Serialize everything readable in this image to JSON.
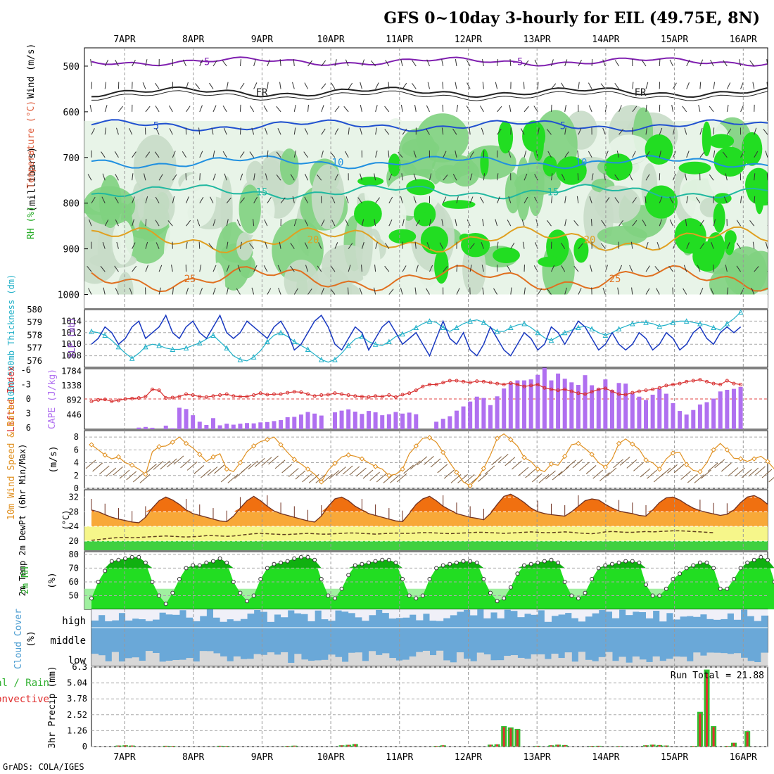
{
  "title": "GFS 0~10day 3-hourly for EIL (49.75E, 8N)",
  "footer": "GrADS: COLA/IGES",
  "dates": [
    "7APR",
    "8APR",
    "9APR",
    "10APR",
    "11APR",
    "12APR",
    "13APR",
    "14APR",
    "15APR",
    "16APR"
  ],
  "colors": {
    "rh_light": "#e8f4e8",
    "rh_mid": "#c8dcc8",
    "rh_green": "#7fd27f",
    "rh_bright": "#22dd22",
    "temp_purple": "#8020b0",
    "temp_blue": "#2050d0",
    "temp_lightblue": "#2090e0",
    "temp_teal": "#20b8a0",
    "temp_orange": "#e0a020",
    "temp_darkorange": "#e07020",
    "thick_line": "#20b0c8",
    "slp_line": "#1838c0",
    "cape_bar": "#b070f0",
    "li_line": "#d83030",
    "wind_line": "#e09020",
    "barb": "#806040",
    "temp_fill_hot": "#f07010",
    "temp_fill": "#f8a838",
    "yellow": "#f6f68a",
    "green": "#40d040",
    "rh2m_dark": "#10b010",
    "rh2m_mid": "#22dd22",
    "rh2m_light": "#a0f0a0",
    "cloud_blue": "#6aa8d8",
    "cloud_grey": "#d8d8d8",
    "cloud_white": "#f0f0f8",
    "precip_green": "#30c030",
    "precip_red": "#e03030"
  },
  "chart_data": [
    {
      "panel": "upper-air",
      "type": "contour",
      "ylabel": "(millibars)",
      "left_labels": [
        "RH (%)",
        "Temperature (°C)",
        "Wind (m/s)"
      ],
      "y_ticks": [
        500,
        600,
        700,
        800,
        900,
        1000
      ],
      "ylim": [
        460,
        1030
      ],
      "isotherm_labels": [
        "-5",
        "FR",
        "5",
        "10",
        "15",
        "20",
        "25",
        "-5",
        "FR",
        "5",
        "10",
        "15",
        "20",
        "25"
      ],
      "isotherm_levels": [
        {
          "label": "-5",
          "pressure_mb": 490
        },
        {
          "label": "FR",
          "pressure_mb": 557
        },
        {
          "label": "5",
          "pressure_mb": 630
        },
        {
          "label": "10",
          "pressure_mb": 710
        },
        {
          "label": "15",
          "pressure_mb": 775
        },
        {
          "label": "20",
          "pressure_mb": 880
        },
        {
          "label": "25",
          "pressure_mb": 965
        }
      ]
    },
    {
      "panel": "thickness-slp",
      "type": "line",
      "left_label": "1000-500mb Thickness (dm)",
      "right_label": "SLP (mb)",
      "y_ticks_left": [
        576,
        577,
        578,
        579,
        580
      ],
      "y_ticks_right": [
        1008,
        1010,
        1012,
        1014
      ],
      "thickness_dm": [
        578.3,
        578.2,
        578.0,
        577.6,
        577.1,
        576.6,
        576.2,
        576.6,
        577.1,
        577.3,
        577.2,
        577.0,
        576.9,
        576.9,
        577.0,
        577.2,
        577.4,
        577.7,
        578.0,
        577.5,
        577.0,
        576.4,
        576.1,
        576.0,
        576.3,
        576.8,
        577.5,
        578.0,
        578.2,
        577.9,
        577.5,
        577.2,
        576.9,
        576.5,
        576.1,
        575.9,
        576.1,
        576.6,
        577.2,
        577.7,
        577.9,
        577.5,
        577.3,
        577.2,
        577.5,
        577.9,
        578.1,
        578.3,
        578.6,
        578.9,
        579.1,
        579.0,
        578.6,
        578.3,
        578.6,
        578.9,
        579.1,
        579.2,
        579.0,
        578.6,
        578.3,
        578.3,
        578.6,
        578.8,
        578.9,
        578.6,
        578.2,
        577.8,
        577.6,
        577.9,
        578.2,
        578.4,
        578.6,
        578.7,
        578.5,
        578.2,
        578.0,
        578.2,
        578.5,
        578.7,
        578.9,
        579.0,
        579.0,
        578.9,
        578.7,
        578.8,
        579.0,
        579.1,
        579.1,
        579.0,
        578.9,
        578.8,
        578.6,
        578.4,
        578.9,
        579.3,
        579.8
      ],
      "slp_mb": [
        1010,
        1011,
        1013,
        1012,
        1010,
        1011,
        1013,
        1014,
        1011,
        1012,
        1013,
        1015,
        1012,
        1011,
        1013,
        1014,
        1012,
        1011,
        1013,
        1015,
        1012,
        1011,
        1012,
        1014,
        1013,
        1012,
        1011,
        1013,
        1014,
        1012,
        1009,
        1010,
        1012,
        1014,
        1015,
        1013,
        1010,
        1009,
        1011,
        1013,
        1012,
        1009,
        1011,
        1013,
        1014,
        1012,
        1010,
        1011,
        1012,
        1010,
        1008,
        1011,
        1014,
        1011,
        1010,
        1012,
        1009,
        1008,
        1010,
        1013,
        1011,
        1009,
        1008,
        1010,
        1012,
        1011,
        1009,
        1010,
        1013,
        1012,
        1010,
        1012,
        1014,
        1013,
        1011,
        1009,
        1010,
        1012,
        1010,
        1009,
        1010,
        1012,
        1011,
        1009,
        1010,
        1012,
        1011,
        1009,
        1010,
        1012,
        1013,
        1011,
        1010,
        1012,
        1013,
        1012,
        1013
      ]
    },
    {
      "panel": "cape-li",
      "type": "bar",
      "left_label": "Lifted Index",
      "right_label": "CAPE (J/kg)",
      "li_ticks": [
        -6,
        -3,
        0,
        3,
        6
      ],
      "cape_ticks": [
        446,
        892,
        1338,
        1784
      ],
      "cape_values": [
        0,
        0,
        0,
        0,
        0,
        0,
        0,
        50,
        70,
        45,
        0,
        110,
        30,
        660,
        620,
        430,
        230,
        130,
        340,
        120,
        170,
        140,
        170,
        190,
        180,
        210,
        220,
        250,
        280,
        370,
        380,
        450,
        530,
        480,
        420,
        0,
        520,
        570,
        610,
        540,
        470,
        560,
        520,
        430,
        460,
        530,
        480,
        510,
        460,
        0,
        0,
        230,
        320,
        400,
        570,
        700,
        850,
        1000,
        960,
        740,
        1010,
        1250,
        1440,
        1500,
        1500,
        1530,
        1670,
        1890,
        1500,
        1710,
        1550,
        1440,
        1360,
        1660,
        1350,
        1250,
        1530,
        1200,
        1420,
        1400,
        1100,
        1000,
        900,
        1060,
        1240,
        1090,
        800,
        560,
        450,
        590,
        760,
        830,
        940,
        1160,
        1210,
        1240,
        1300
      ],
      "li_values": [
        0.5,
        0.2,
        0.1,
        0.5,
        0.3,
        0,
        -0.1,
        -0.2,
        -0.5,
        -2.0,
        -1.8,
        -0.2,
        -0.3,
        -0.5,
        -1.0,
        -0.8,
        -0.5,
        -0.4,
        -0.6,
        -0.8,
        -1.0,
        -0.6,
        -0.5,
        -0.5,
        -0.8,
        -1.2,
        -0.9,
        -1.0,
        -1.0,
        -1.3,
        -1.5,
        -1.4,
        -1.0,
        -0.6,
        -0.8,
        -0.9,
        -1.2,
        -1.0,
        -0.8,
        -0.6,
        -0.5,
        -0.4,
        -0.6,
        -0.5,
        -0.8,
        -0.4,
        -0.9,
        -1.2,
        -1.8,
        -2.6,
        -3.0,
        -3.0,
        -3.4,
        -3.8,
        -3.8,
        -3.6,
        -3.4,
        -3.7,
        -3.6,
        -3.4,
        -3.2,
        -3.0,
        -3.3,
        -3.0,
        -2.6,
        -2.8,
        -3.0,
        -2.3,
        -2.0,
        -1.8,
        -2.0,
        -1.6,
        -1.2,
        -1.0,
        -1.5,
        -2.0,
        -2.2,
        -1.6,
        -1.0,
        -0.9,
        -1.3,
        -1.6,
        -1.8,
        -2.0,
        -2.3,
        -2.8,
        -3.0,
        -3.2,
        -3.6,
        -3.8,
        -4.0,
        -3.6,
        -3.2,
        -3.0,
        -3.8,
        -3.2,
        -3.0
      ]
    },
    {
      "panel": "wind10m",
      "type": "line",
      "left_label": "10m Wind Speed & Barbs",
      "unit": "(m/s)",
      "y_ticks": [
        0,
        2,
        4,
        6,
        8
      ],
      "speed_ms": [
        6.8,
        6.0,
        5.2,
        4.6,
        4.9,
        4.0,
        3.6,
        3.0,
        2.2,
        5.7,
        6.5,
        6.6,
        7.2,
        8.0,
        7.0,
        6.3,
        5.3,
        4.2,
        4.9,
        5.4,
        3.0,
        2.6,
        4.0,
        5.7,
        6.6,
        7.3,
        7.6,
        8.0,
        6.8,
        5.6,
        4.5,
        3.8,
        3.0,
        2.2,
        1.0,
        2.8,
        3.9,
        4.9,
        5.2,
        5.0,
        4.6,
        4.0,
        3.4,
        3.0,
        2.0,
        2.2,
        3.0,
        5.4,
        6.6,
        7.8,
        7.9,
        7.2,
        5.6,
        4.0,
        2.5,
        1.0,
        0.4,
        1.5,
        3.1,
        5.2,
        7.8,
        8.5,
        7.6,
        6.6,
        4.8,
        4.2,
        3.0,
        2.6,
        3.8,
        3.6,
        5.0,
        6.8,
        7.0,
        6.2,
        5.3,
        4.0,
        3.3,
        4.6,
        7.0,
        7.7,
        6.9,
        6.1,
        4.4,
        4.0,
        3.0,
        4.6,
        5.5,
        5.6,
        3.7,
        2.8,
        2.6,
        4.0,
        6.0,
        7.0,
        6.0,
        4.7,
        4.6,
        4.2,
        4.6,
        5.0,
        4.2,
        3.0,
        2.8,
        4.5
      ]
    },
    {
      "panel": "temp2m",
      "type": "area",
      "left_label": "2m Temp 2m DewPt (6hr Min/Max)",
      "unit": "(°C)",
      "y_ticks": [
        20,
        24,
        28,
        32
      ],
      "temp_c": [
        28.5,
        28.0,
        27.2,
        26.5,
        26.0,
        25.6,
        25.2,
        25.0,
        26.5,
        29.0,
        31.0,
        32.0,
        31.2,
        30.0,
        28.5,
        27.5,
        27.0,
        26.5,
        26.0,
        25.5,
        25.3,
        26.8,
        29.0,
        31.0,
        32.2,
        31.0,
        29.5,
        28.2,
        27.5,
        27.0,
        26.5,
        26.0,
        25.5,
        25.2,
        26.8,
        29.5,
        31.5,
        32.0,
        31.0,
        29.5,
        28.5,
        27.5,
        27.0,
        26.5,
        26.0,
        25.5,
        25.3,
        27.5,
        30.0,
        31.5,
        32.2,
        31.0,
        29.5,
        28.5,
        27.5,
        27.0,
        26.5,
        26.2,
        25.8,
        27.5,
        30.0,
        32.2,
        32.8,
        31.8,
        30.5,
        29.0,
        28.0,
        27.5,
        27.2,
        27.0,
        26.8,
        28.0,
        29.5,
        31.0,
        31.5,
        31.2,
        30.0,
        29.0,
        28.2,
        27.8,
        27.5,
        27.0,
        26.8,
        28.5,
        30.5,
        31.8,
        32.0,
        31.2,
        30.0,
        29.0,
        28.3,
        27.8,
        27.4,
        27.0,
        27.3,
        28.5,
        30.5,
        32.0,
        32.4,
        31.5,
        30.0
      ],
      "dewpoint_c": [
        20.2,
        20.4,
        20.6,
        20.8,
        21.0,
        21.0,
        20.9,
        21.0,
        21.1,
        21.2,
        21.3,
        21.4,
        21.3,
        21.2,
        21.1,
        21.2,
        21.3,
        21.5,
        21.5,
        21.4,
        21.3,
        21.4,
        21.6,
        21.8,
        22.0,
        22.1,
        22.0,
        21.9,
        21.8,
        21.8,
        21.9,
        22.0,
        22.1,
        22.0,
        21.9,
        21.9,
        22.0,
        22.1,
        22.2,
        22.2,
        22.1,
        22.0,
        21.9,
        22.0,
        22.1,
        22.2,
        22.1,
        22.1,
        22.2,
        22.3,
        22.3,
        22.2,
        22.1,
        22.0,
        22.1,
        22.2,
        22.3,
        22.4,
        22.4,
        22.3,
        22.2,
        22.1,
        22.2,
        22.3,
        22.4,
        22.5,
        22.4,
        22.3,
        22.3,
        22.4,
        22.5,
        22.4,
        22.2,
        22.1,
        22.0,
        22.2,
        22.5,
        22.6,
        22.5,
        22.4,
        22.4,
        22.5,
        22.6,
        22.5,
        22.6,
        22.7,
        22.8,
        22.8,
        22.7,
        22.6,
        22.5,
        22.4,
        22.3
      ]
    },
    {
      "panel": "rh2m",
      "type": "area",
      "left_label": "2m RH",
      "unit": "(%)",
      "y_ticks": [
        50,
        60,
        70,
        80
      ],
      "rh_pct": [
        48,
        60,
        68,
        75,
        76,
        77,
        78,
        78,
        74,
        60,
        50,
        44,
        52,
        62,
        70,
        72,
        72,
        74,
        75,
        77,
        74,
        60,
        52,
        46,
        50,
        62,
        70,
        73,
        74,
        75,
        77,
        78,
        78,
        76,
        62,
        50,
        48,
        55,
        65,
        72,
        73,
        74,
        75,
        76,
        76,
        74,
        62,
        50,
        48,
        50,
        62,
        70,
        72,
        73,
        74,
        75,
        75,
        74,
        62,
        52,
        46,
        48,
        56,
        66,
        72,
        73,
        74,
        75,
        76,
        74,
        60,
        50,
        48,
        52,
        62,
        70,
        72,
        73,
        74,
        75,
        75,
        74,
        58,
        50,
        50,
        55,
        62,
        66,
        70,
        72,
        74,
        74,
        70,
        55,
        55,
        62,
        70,
        74,
        76,
        78,
        76,
        60
      ]
    },
    {
      "panel": "cloud",
      "type": "bar",
      "left_label": "Cloud Cover",
      "unit": "(%)",
      "layers": [
        "high",
        "middle",
        "low"
      ]
    },
    {
      "panel": "precip",
      "type": "bar",
      "left_label_total": "Total / Rain",
      "left_label_conv": "Convective",
      "ylabel": "3hr Precip (mm)",
      "run_total_label": "Run Total",
      "run_total": "21.88",
      "y_ticks": [
        0,
        1.26,
        2.52,
        3.78,
        5.04,
        6.3
      ],
      "ylim": [
        0,
        6.3
      ],
      "precip_events": [
        {
          "step": 4,
          "total": 0.08
        },
        {
          "step": 5,
          "total": 0.1
        },
        {
          "step": 6,
          "total": 0.08
        },
        {
          "step": 11,
          "total": 0.06
        },
        {
          "step": 12,
          "total": 0.05
        },
        {
          "step": 19,
          "total": 0.06
        },
        {
          "step": 20,
          "total": 0.05
        },
        {
          "step": 29,
          "total": 0.05
        },
        {
          "step": 30,
          "total": 0.07
        },
        {
          "step": 37,
          "total": 0.1
        },
        {
          "step": 38,
          "total": 0.14
        },
        {
          "step": 39,
          "total": 0.2
        },
        {
          "step": 51,
          "total": 0.05
        },
        {
          "step": 52,
          "total": 0.1
        },
        {
          "step": 59,
          "total": 0.15
        },
        {
          "step": 60,
          "total": 0.18
        },
        {
          "step": 61,
          "total": 1.62
        },
        {
          "step": 62,
          "total": 1.52
        },
        {
          "step": 63,
          "total": 1.4
        },
        {
          "step": 66,
          "total": 0.06
        },
        {
          "step": 68,
          "total": 0.1
        },
        {
          "step": 69,
          "total": 0.15
        },
        {
          "step": 70,
          "total": 0.12
        },
        {
          "step": 74,
          "total": 0.05
        },
        {
          "step": 75,
          "total": 0.06
        },
        {
          "step": 78,
          "total": 0.04
        },
        {
          "step": 82,
          "total": 0.1
        },
        {
          "step": 83,
          "total": 0.15
        },
        {
          "step": 84,
          "total": 0.12
        },
        {
          "step": 85,
          "total": 0.08
        },
        {
          "step": 89,
          "total": 0.05
        },
        {
          "step": 90,
          "total": 2.75
        },
        {
          "step": 91,
          "total": 6.1
        },
        {
          "step": 92,
          "total": 1.62
        },
        {
          "step": 94,
          "total": 0.05
        },
        {
          "step": 95,
          "total": 0.3
        },
        {
          "step": 97,
          "total": 1.22
        }
      ]
    }
  ]
}
